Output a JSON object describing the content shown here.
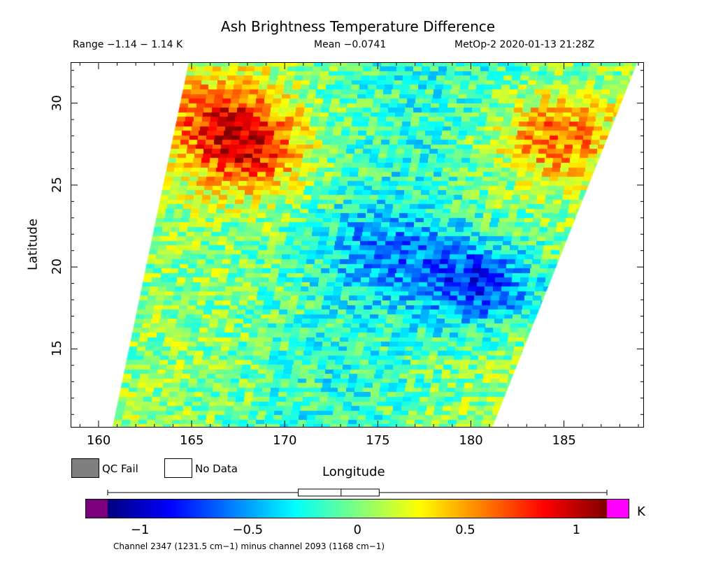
{
  "title": "Ash Brightness Temperature Difference",
  "range_text": "Range −1.14 − 1.14 K",
  "mean_text": "Mean −0.0741",
  "satellite_text": "MetOp-2 2020-01-13 21:28Z",
  "legend": {
    "qc_fail": "QC Fail",
    "no_data": "No Data",
    "qc_fail_color": "#7f7f7f",
    "no_data_color": "#ffffff"
  },
  "chart_data": {
    "type": "heatmap",
    "title": "Ash Brightness Temperature Difference",
    "xlabel": "Longitude",
    "ylabel": "Latitude",
    "xlim": [
      158.5,
      189.3
    ],
    "ylim": [
      10.2,
      32.5
    ],
    "x_ticks": [
      "160",
      "165",
      "170",
      "175",
      "180",
      "185"
    ],
    "y_ticks": [
      "15",
      "20",
      "25",
      "30"
    ],
    "swath_corners": [
      [
        160.7,
        10.2
      ],
      [
        181.1,
        10.2
      ],
      [
        188.9,
        32.5
      ],
      [
        164.8,
        32.5
      ]
    ],
    "colorbar": {
      "unit": "K",
      "range": [
        -1.14,
        1.14
      ],
      "ticks": [
        "−1",
        "−0.5",
        "0",
        "0.5",
        "1"
      ],
      "boxplot": {
        "min": -1.14,
        "q1": -0.27,
        "median": -0.0741,
        "q3": 0.1,
        "max": 1.14
      },
      "below_color": "#7f007f",
      "above_color": "#ff00ff"
    },
    "features": [
      {
        "name": "warm region NW",
        "lon": 166.5,
        "lat": 29.5,
        "value": 0.7
      },
      {
        "name": "hot spot",
        "lon": 168.0,
        "lat": 27.2,
        "value": 1.0
      },
      {
        "name": "warm region NE",
        "lon": 184.5,
        "lat": 28.0,
        "value": 0.8
      },
      {
        "name": "cool band",
        "lon": 175.5,
        "lat": 21.0,
        "value": -0.5
      },
      {
        "name": "cool spot",
        "lon": 180.5,
        "lat": 19.0,
        "value": -1.0
      }
    ]
  },
  "colorbar_caption": "Channel 2347 (1231.5 cm−1) minus channel 2093 (1168 cm−1)"
}
